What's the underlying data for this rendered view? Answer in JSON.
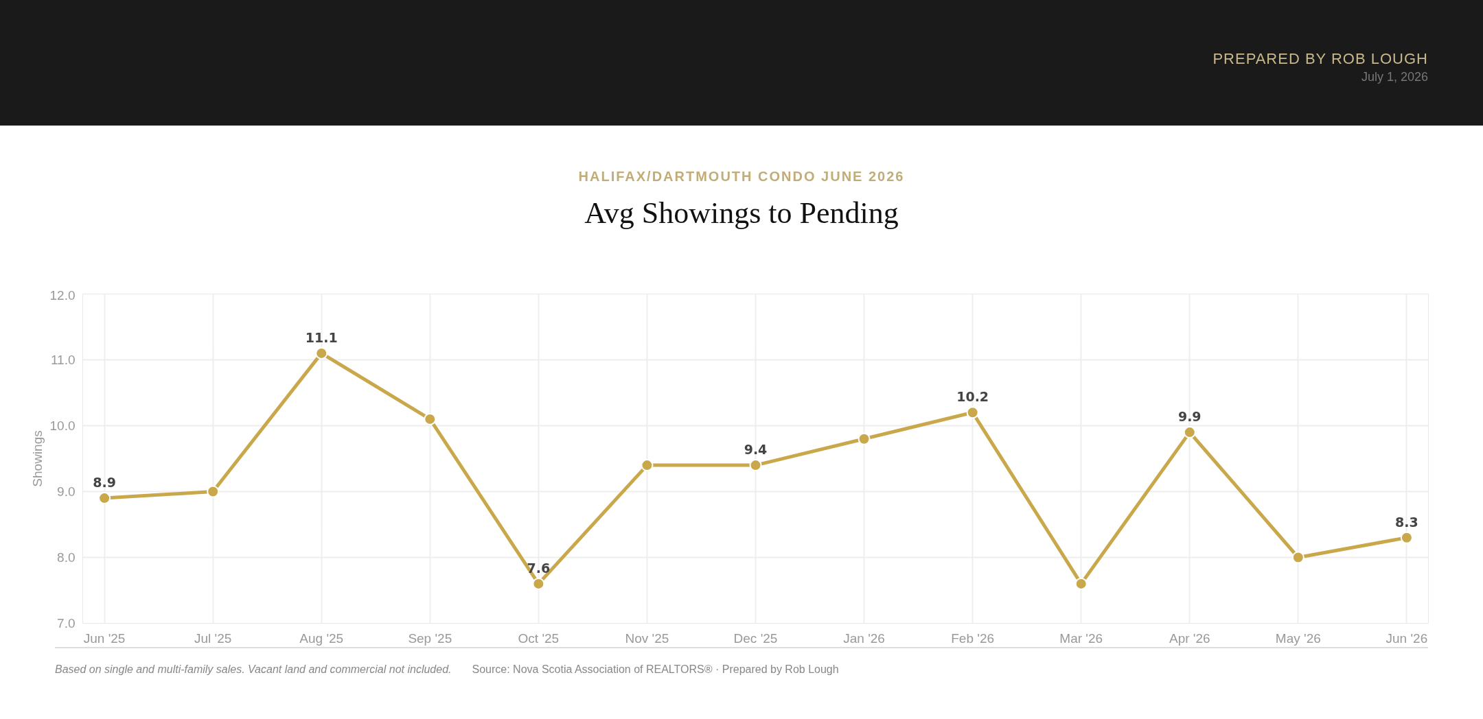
{
  "chart_data": {
    "type": "line",
    "subtitle": "HALIFAX/DARTMOUTH CONDO JUNE 2026",
    "title": "Avg Showings to Pending",
    "ylabel": "Showings",
    "categories": [
      "Jun '25",
      "Jul '25",
      "Aug '25",
      "Sep '25",
      "Oct '25",
      "Nov '25",
      "Dec '25",
      "Jan '26",
      "Feb '26",
      "Mar '26",
      "Apr '26",
      "May '26",
      "Jun '26"
    ],
    "series": [
      {
        "color": "#c9a84c",
        "values": [
          8.9,
          9.0,
          11.1,
          10.1,
          7.6,
          9.4,
          9.4,
          9.8,
          10.2,
          7.6,
          9.9,
          8.0,
          8.3
        ],
        "value_labels": [
          "8.9",
          null,
          "11.1",
          null,
          "7.6",
          null,
          "9.4",
          null,
          "10.2",
          null,
          "9.9",
          null,
          "8.3"
        ]
      }
    ],
    "ylim": [
      7,
      12
    ],
    "yticks": [
      {
        "value": 7,
        "label": "7.0"
      },
      {
        "value": 8,
        "label": "8.0"
      },
      {
        "value": 9,
        "label": "9.0"
      },
      {
        "value": 10,
        "label": "10.0"
      },
      {
        "value": 11,
        "label": "11.0"
      },
      {
        "value": 12,
        "label": "12.0"
      }
    ],
    "grid": true,
    "marker": "circle",
    "line_style": "solid",
    "annotations": [
      "PREPARED BY ROB LOUGH",
      "July 1, 2026",
      "Based on single and multi-family sales. Vacant land and commercial not included.",
      "Source: Nova Scotia Association of REALTORS® · Prepared by Rob Lough"
    ]
  }
}
